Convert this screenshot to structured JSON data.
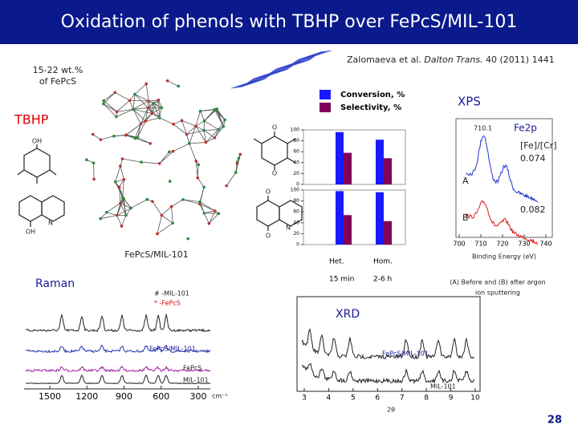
{
  "header": {
    "title": "Oxidation of phenols with TBHP over FePcS/MIL-101"
  },
  "reference": {
    "authors": "Zalomaeva et al.",
    "journal": "Dalton Trans.",
    "details": "40 (2011) 1441"
  },
  "loading": [
    "15-22 wt.%",
    "of FePcS"
  ],
  "oxidant": "TBHP",
  "mof_label": "FePcS/MIL-101",
  "structures": {
    "trimethylphenol": [
      "OH"
    ],
    "hydroxyquinoline": [
      "N",
      "OH"
    ],
    "quinone": [
      "O",
      "O"
    ],
    "quinolinedione": [
      "O",
      "O",
      "N"
    ]
  },
  "bar_chart": {
    "series": [
      {
        "name": "Conversion, %",
        "color": "#1a1aff"
      },
      {
        "name": "Selectivity, %",
        "color": "#80005a"
      }
    ],
    "columns": [
      "Het.",
      "Hom."
    ],
    "times": [
      "15 min",
      "2-6 h"
    ],
    "ylim": [
      0,
      100
    ],
    "yticks": [
      0,
      20,
      40,
      60,
      80,
      100
    ],
    "panels": [
      {
        "values": [
          [
            96,
            58
          ],
          [
            82,
            48
          ]
        ]
      },
      {
        "values": [
          [
            98,
            54
          ],
          [
            96,
            43
          ]
        ]
      }
    ]
  },
  "xps": {
    "title": "XPS",
    "peak": "710.1",
    "orbital": "Fe2p",
    "ratio_label": "[Fe]/[Cr]",
    "ratio_a": "0.074",
    "ratio_b": "0.082",
    "trace_a": "A",
    "trace_b": "B",
    "xlim": [
      700,
      740
    ],
    "xticks": [
      700,
      710,
      720,
      730,
      740
    ],
    "xlabel": "Binding Energy (eV)",
    "caption": [
      "(A) Before and (B) after argon",
      "ion sputtering"
    ]
  },
  "raman": {
    "title": "Raman",
    "legend": [
      "# -MIL-101",
      "* -FePcS"
    ],
    "traces": [
      "FePcS/MIL-101",
      "FePcS",
      "MIL-101"
    ],
    "xlim": [
      1500,
      300
    ],
    "xticks": [
      1500,
      1200,
      900,
      600,
      300
    ],
    "unit": "cm⁻¹"
  },
  "xrd": {
    "title": "XRD",
    "traces": [
      "FePcS/MIL-101",
      "MIL-101"
    ],
    "xlim": [
      3,
      10
    ],
    "xticks": [
      3,
      4,
      5,
      6,
      7,
      8,
      9,
      10
    ],
    "xlabel": "2θ"
  },
  "page_number": "28"
}
